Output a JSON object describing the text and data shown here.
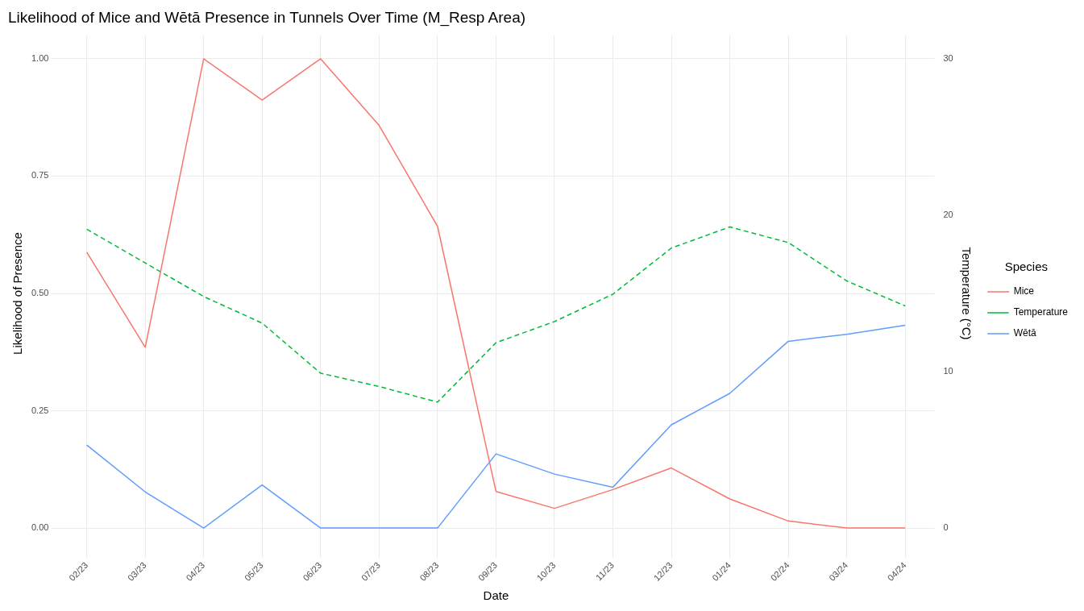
{
  "chart_data": {
    "type": "line",
    "title": "Likelihood of Mice and Wētā Presence in Tunnels Over Time (M_Resp Area)",
    "xlabel": "Date",
    "ylabel": "Likelihood of Presence",
    "y2label": "Temperature (°C)",
    "legend_title": "Species",
    "categories": [
      "02/23",
      "03/23",
      "04/23",
      "05/23",
      "06/23",
      "07/23",
      "08/23",
      "09/23",
      "10/23",
      "11/23",
      "12/23",
      "01/24",
      "02/24",
      "03/24",
      "04/24"
    ],
    "series": [
      {
        "name": "Mice",
        "color": "#f8766d",
        "values": [
          0.588,
          0.385,
          1.0,
          0.912,
          1.0,
          0.858,
          0.643,
          0.078,
          0.042,
          0.082,
          0.128,
          0.062,
          0.015,
          0,
          0
        ]
      },
      {
        "name": "Temperature",
        "color": "#00ba38",
        "line_style": "dashed",
        "axis": "y2",
        "values": [
          19.1,
          16.95,
          14.8,
          13.1,
          9.9,
          9.05,
          8.05,
          11.85,
          13.2,
          14.95,
          17.9,
          19.25,
          18.25,
          15.8,
          14.2
        ]
      },
      {
        "name": "Wētā",
        "color": "#619cff",
        "values": [
          0.177,
          0.077,
          0,
          0.092,
          0,
          0,
          0,
          0.158,
          0.115,
          0.087,
          0.22,
          0.287,
          0.398,
          0.413,
          0.432
        ]
      }
    ],
    "ylim": [
      -0.05,
      1.05
    ],
    "yticks": [
      {
        "value": 0,
        "label": "0.00"
      },
      {
        "value": 0.25,
        "label": "0.25"
      },
      {
        "value": 0.5,
        "label": "0.50"
      },
      {
        "value": 0.75,
        "label": "0.75"
      },
      {
        "value": 1,
        "label": "1.00"
      }
    ],
    "y2lim": [
      -1.5,
      31.5
    ],
    "y2ticks": [
      0,
      10,
      20,
      30
    ],
    "grid": true,
    "legend": "right",
    "marker": "none",
    "line_style": "solid"
  }
}
